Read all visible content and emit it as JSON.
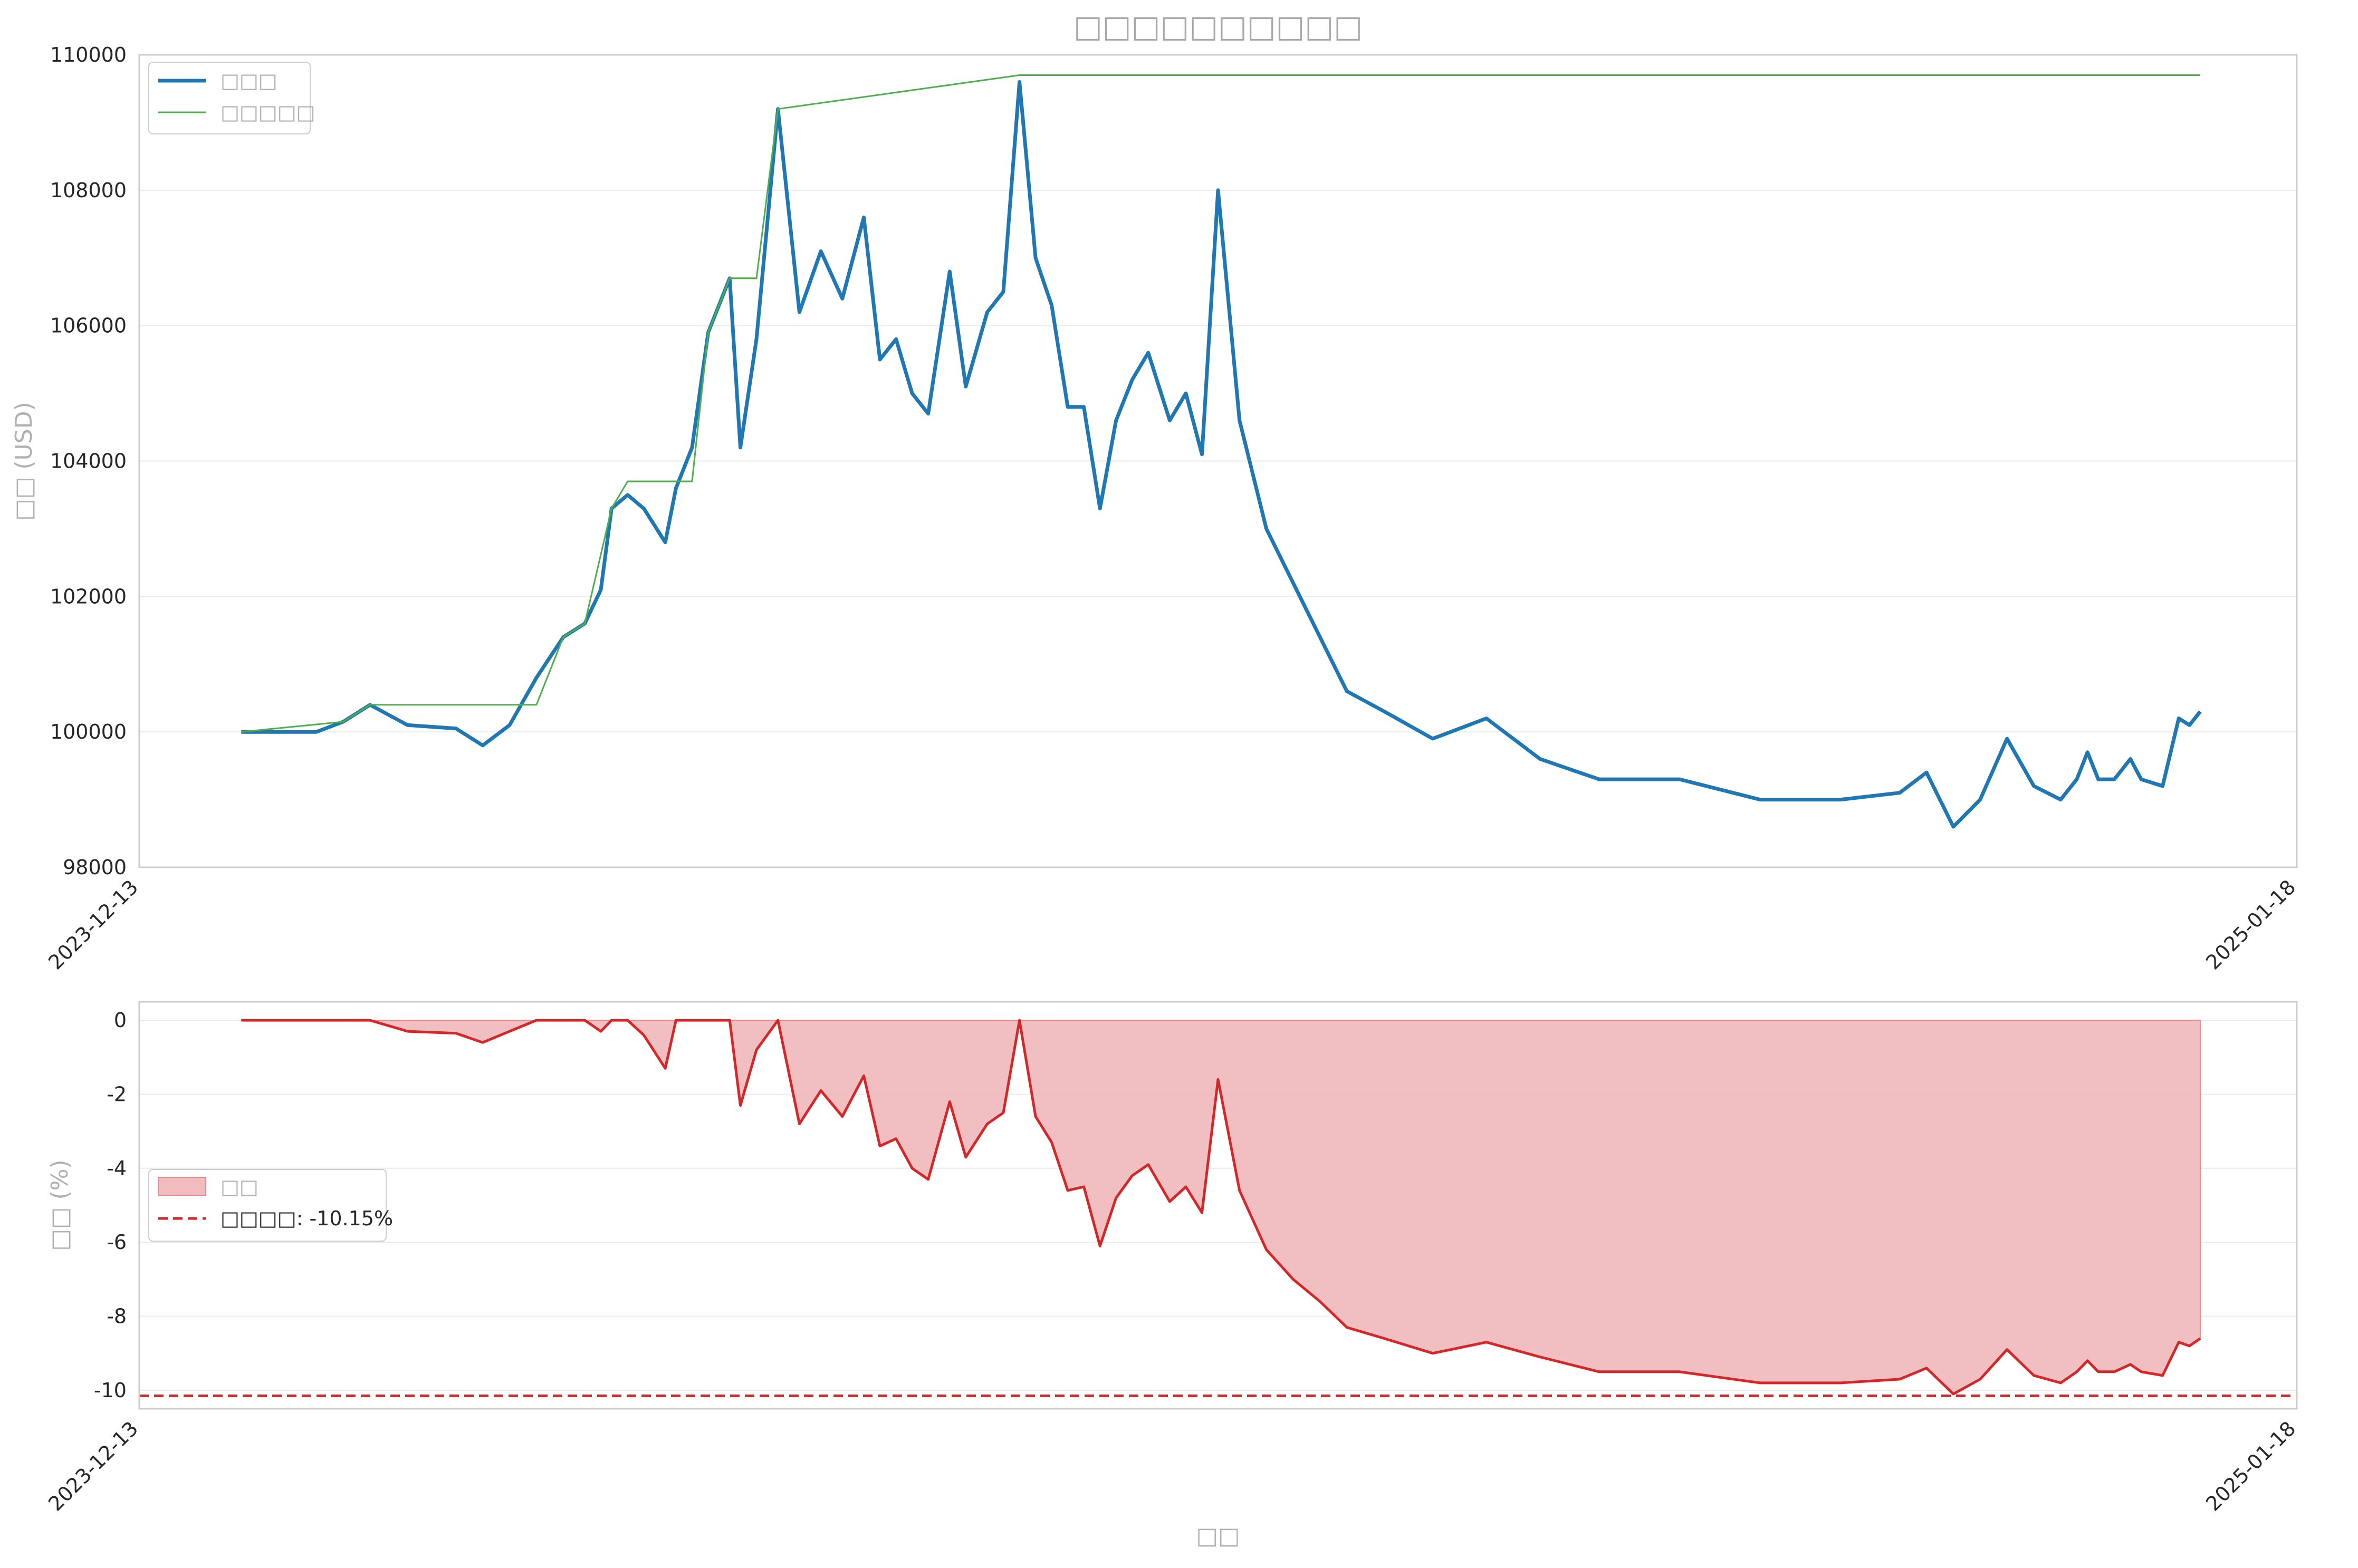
{
  "chart_data": [
    {
      "type": "line",
      "title": "□□□□□□□□□□",
      "ylabel": "□□ (USD)",
      "xlabel": "",
      "xlim": [
        "2023-12-13",
        "2025-01-18"
      ],
      "x_tick_labels": [
        "2023-12-13",
        "2025-01-18"
      ],
      "ylim": [
        98000,
        110000
      ],
      "y_tick_labels": [
        "98000",
        "100000",
        "102000",
        "104000",
        "106000",
        "108000",
        "110000"
      ],
      "grid": true,
      "legend_position": "top-left",
      "series": [
        {
          "name": "□□□",
          "color": "#1f77b4",
          "x": [
            "2024-01-01",
            "2024-01-15",
            "2024-01-20",
            "2024-01-25",
            "2024-02-01",
            "2024-02-10",
            "2024-02-15",
            "2024-02-20",
            "2024-02-25",
            "2024-03-01",
            "2024-03-05",
            "2024-03-08",
            "2024-03-10",
            "2024-03-13",
            "2024-03-16",
            "2024-03-20",
            "2024-03-22",
            "2024-03-25",
            "2024-03-28",
            "2024-04-01",
            "2024-04-03",
            "2024-04-06",
            "2024-04-10",
            "2024-04-14",
            "2024-04-18",
            "2024-04-22",
            "2024-04-26",
            "2024-04-29",
            "2024-05-02",
            "2024-05-05",
            "2024-05-08",
            "2024-05-12",
            "2024-05-15",
            "2024-05-19",
            "2024-05-22",
            "2024-05-25",
            "2024-05-28",
            "2024-05-31",
            "2024-06-03",
            "2024-06-06",
            "2024-06-09",
            "2024-06-12",
            "2024-06-15",
            "2024-06-18",
            "2024-06-22",
            "2024-06-25",
            "2024-06-28",
            "2024-07-01",
            "2024-07-05",
            "2024-07-10",
            "2024-07-15",
            "2024-07-20",
            "2024-07-25",
            "2024-08-01",
            "2024-08-10",
            "2024-08-20",
            "2024-08-30",
            "2024-09-10",
            "2024-09-25",
            "2024-10-10",
            "2024-10-25",
            "2024-11-05",
            "2024-11-10",
            "2024-11-15",
            "2024-11-20",
            "2024-11-25",
            "2024-11-30",
            "2024-12-05",
            "2024-12-08",
            "2024-12-10",
            "2024-12-12",
            "2024-12-15",
            "2024-12-18",
            "2024-12-20",
            "2024-12-24",
            "2024-12-27",
            "2024-12-29",
            "2024-12-31"
          ],
          "values": [
            100000,
            100000,
            100150,
            100400,
            100100,
            100050,
            99800,
            100100,
            100800,
            101400,
            101600,
            102100,
            103300,
            103500,
            103300,
            102800,
            103600,
            104200,
            105900,
            106700,
            104200,
            105800,
            109200,
            106200,
            107100,
            106400,
            107600,
            105500,
            105800,
            105000,
            104700,
            106800,
            105100,
            106200,
            106500,
            109600,
            107000,
            106300,
            104800,
            104800,
            103300,
            104600,
            105200,
            105600,
            104600,
            105000,
            104100,
            108000,
            104600,
            103000,
            102200,
            101400,
            100600,
            100300,
            99900,
            100200,
            99600,
            99300,
            99300,
            99000,
            99000,
            99100,
            99400,
            98600,
            99000,
            99900,
            99200,
            99000,
            99300,
            99700,
            99300,
            99300,
            99600,
            99300,
            99200,
            100200,
            100100,
            100300
          ]
        },
        {
          "name": "□□□□□",
          "color": "#4daf4a",
          "x": [
            "2024-01-01",
            "2024-01-20",
            "2024-01-25",
            "2024-02-25",
            "2024-03-01",
            "2024-03-05",
            "2024-03-10",
            "2024-03-13",
            "2024-03-25",
            "2024-03-28",
            "2024-04-01",
            "2024-04-06",
            "2024-04-10",
            "2024-05-25",
            "2024-12-31"
          ],
          "values": [
            100000,
            100150,
            100400,
            100400,
            101400,
            101600,
            103300,
            103700,
            103700,
            105900,
            106700,
            106700,
            109200,
            109700,
            109700
          ]
        }
      ]
    },
    {
      "type": "area",
      "title": "",
      "ylabel": "□□ (%)",
      "xlabel": "□□",
      "xlim": [
        "2023-12-13",
        "2025-01-18"
      ],
      "x_tick_labels": [
        "2023-12-13",
        "2025-01-18"
      ],
      "ylim": [
        -10.5,
        0.5
      ],
      "y_tick_labels": [
        "-10",
        "-8",
        "-6",
        "-4",
        "-2",
        "0"
      ],
      "grid": true,
      "legend_position": "center-left",
      "series": [
        {
          "name": "□□",
          "color": "#d62728",
          "fill": "#f0bcbe",
          "x": [
            "2024-01-01",
            "2024-01-15",
            "2024-01-20",
            "2024-01-25",
            "2024-02-01",
            "2024-02-10",
            "2024-02-15",
            "2024-02-20",
            "2024-02-25",
            "2024-03-01",
            "2024-03-05",
            "2024-03-08",
            "2024-03-10",
            "2024-03-13",
            "2024-03-16",
            "2024-03-20",
            "2024-03-22",
            "2024-03-25",
            "2024-03-28",
            "2024-04-01",
            "2024-04-03",
            "2024-04-06",
            "2024-04-10",
            "2024-04-14",
            "2024-04-18",
            "2024-04-22",
            "2024-04-26",
            "2024-04-29",
            "2024-05-02",
            "2024-05-05",
            "2024-05-08",
            "2024-05-12",
            "2024-05-15",
            "2024-05-19",
            "2024-05-22",
            "2024-05-25",
            "2024-05-28",
            "2024-05-31",
            "2024-06-03",
            "2024-06-06",
            "2024-06-09",
            "2024-06-12",
            "2024-06-15",
            "2024-06-18",
            "2024-06-22",
            "2024-06-25",
            "2024-06-28",
            "2024-07-01",
            "2024-07-05",
            "2024-07-10",
            "2024-07-15",
            "2024-07-20",
            "2024-07-25",
            "2024-08-01",
            "2024-08-10",
            "2024-08-20",
            "2024-08-30",
            "2024-09-10",
            "2024-09-25",
            "2024-10-10",
            "2024-10-25",
            "2024-11-05",
            "2024-11-10",
            "2024-11-15",
            "2024-11-20",
            "2024-11-25",
            "2024-11-30",
            "2024-12-05",
            "2024-12-08",
            "2024-12-10",
            "2024-12-12",
            "2024-12-15",
            "2024-12-18",
            "2024-12-20",
            "2024-12-24",
            "2024-12-27",
            "2024-12-29",
            "2024-12-31"
          ],
          "values": [
            0,
            0,
            0,
            0,
            -0.3,
            -0.35,
            -0.6,
            -0.3,
            0,
            0,
            0,
            -0.3,
            0,
            0,
            -0.4,
            -1.3,
            0,
            0,
            0,
            0,
            -2.3,
            -0.8,
            0,
            -2.8,
            -1.9,
            -2.6,
            -1.5,
            -3.4,
            -3.2,
            -4.0,
            -4.3,
            -2.2,
            -3.7,
            -2.8,
            -2.5,
            0,
            -2.6,
            -3.3,
            -4.6,
            -4.5,
            -6.1,
            -4.8,
            -4.2,
            -3.9,
            -4.9,
            -4.5,
            -5.2,
            -1.6,
            -4.6,
            -6.2,
            -7.0,
            -7.6,
            -8.3,
            -8.6,
            -9.0,
            -8.7,
            -9.1,
            -9.5,
            -9.5,
            -9.8,
            -9.8,
            -9.7,
            -9.4,
            -10.1,
            -9.7,
            -8.9,
            -9.6,
            -9.8,
            -9.5,
            -9.2,
            -9.5,
            -9.5,
            -9.3,
            -9.5,
            -9.6,
            -8.7,
            -8.8,
            -8.6
          ]
        }
      ],
      "reference_line": {
        "label": "□□□□: -10.15%",
        "value": -10.15,
        "color": "#d62728",
        "style": "dashed"
      }
    }
  ]
}
